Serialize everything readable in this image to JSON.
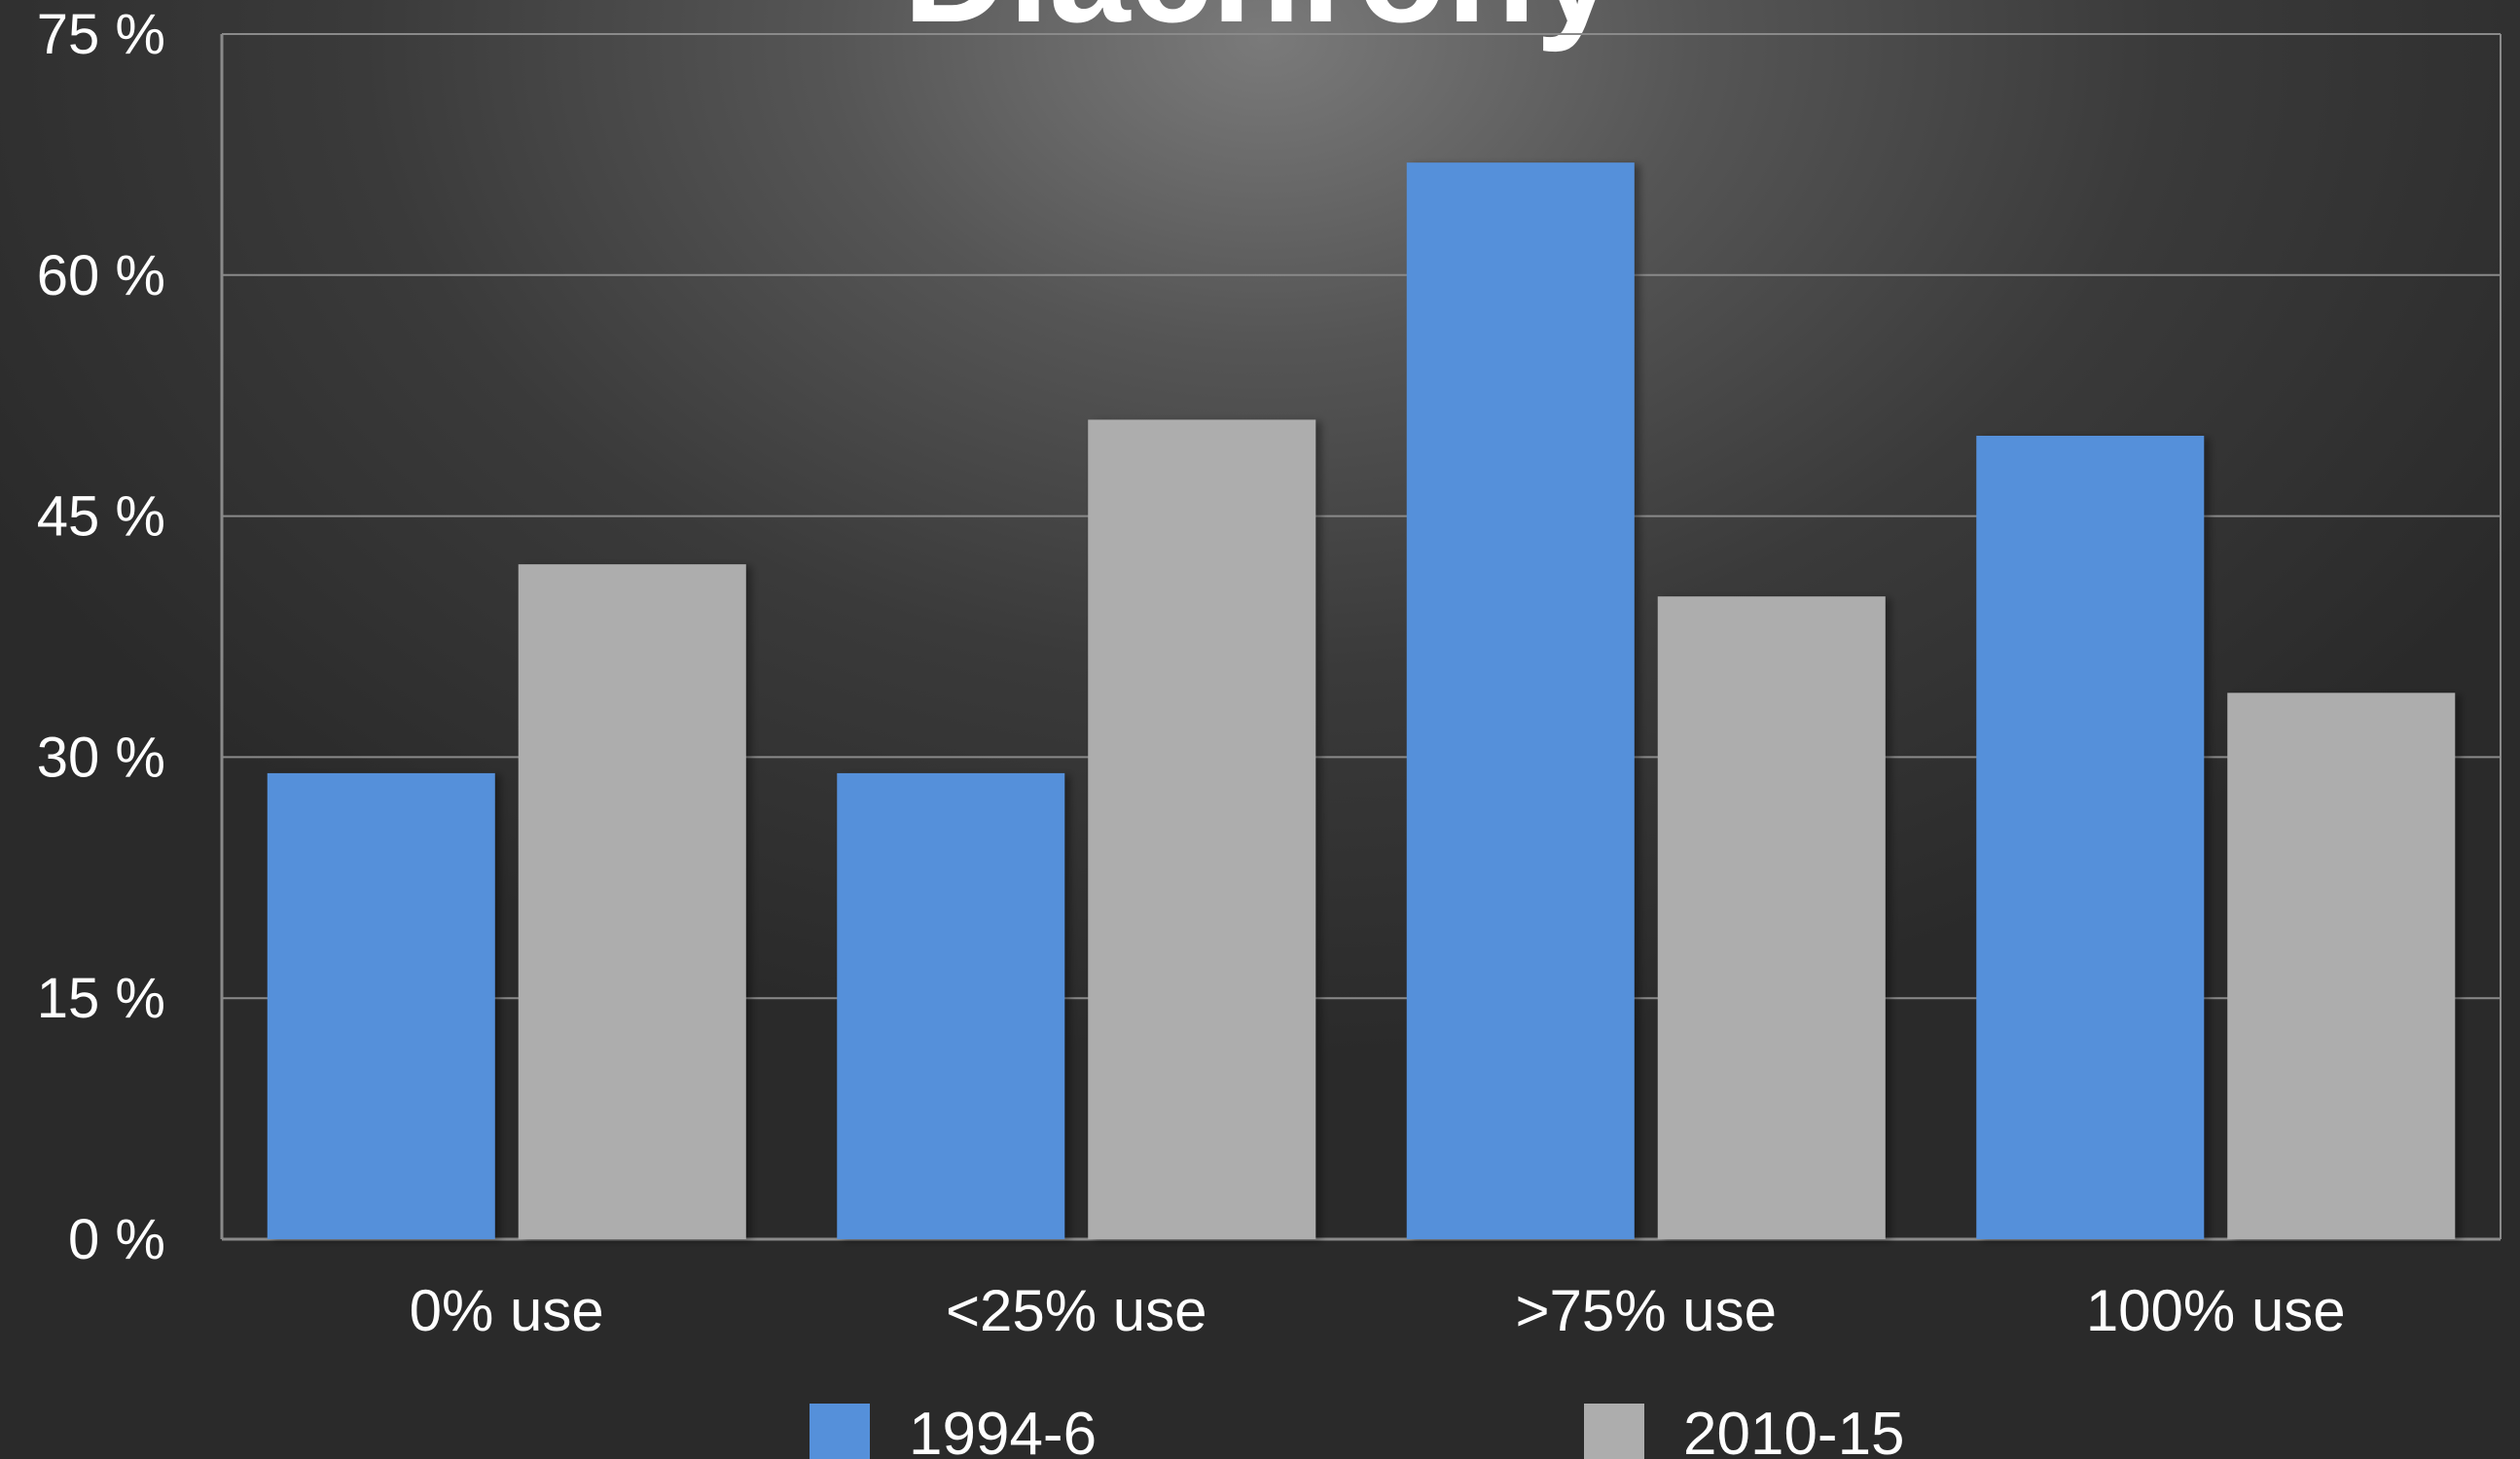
{
  "chart_data": {
    "type": "bar",
    "title": "Diachrony",
    "categories": [
      "0% use",
      "<25% use",
      ">75% use",
      "100% use"
    ],
    "series": [
      {
        "name": "1994-6",
        "values": [
          29,
          29,
          67,
          50
        ]
      },
      {
        "name": "2010-15",
        "values": [
          42,
          51,
          40,
          34
        ]
      }
    ],
    "ylim": [
      0,
      75
    ],
    "yticks": [
      0,
      15,
      30,
      45,
      60,
      75
    ],
    "ytick_labels": [
      "0 %",
      "15 %",
      "30 %",
      "45 %",
      "60 %",
      "75 %"
    ],
    "xlabel": "",
    "ylabel": "",
    "grid": true,
    "legend_position": "bottom",
    "colors": {
      "series": [
        "#5590da",
        "#adadad"
      ],
      "grid": "#8a8a8a",
      "text": "#ffffff"
    }
  }
}
